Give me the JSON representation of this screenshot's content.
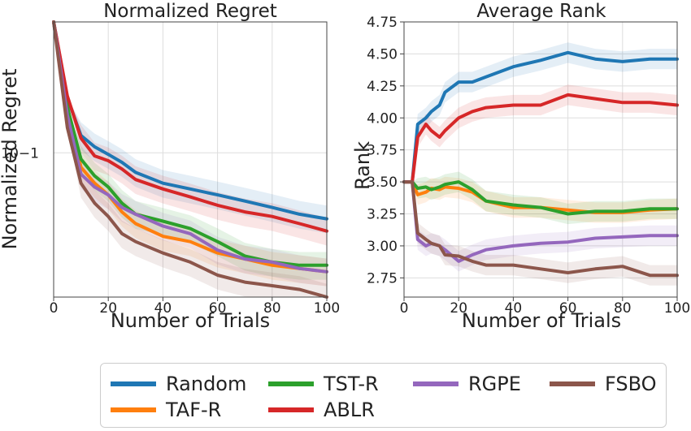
{
  "charts": [
    {
      "type": "line",
      "title": "Normalized Regret",
      "xlabel": "Number of Trials",
      "ylabel": "Normalized Regret",
      "yscale": "log",
      "xlim": [
        0,
        100
      ],
      "ylim": [
        0.039,
        0.235
      ],
      "xticks": [
        "0",
        "20",
        "40",
        "60",
        "80",
        "100"
      ],
      "ytick_label": "10−1",
      "grid": true
    },
    {
      "type": "line",
      "title": "Average Rank",
      "xlabel": "Number of Trials",
      "ylabel": "Rank",
      "xlim": [
        0,
        100
      ],
      "ylim": [
        2.6,
        4.75
      ],
      "yticks": [
        "2.75",
        "3.00",
        "3.25",
        "3.50",
        "3.75",
        "4.00",
        "4.25",
        "4.50",
        "4.75"
      ],
      "xticks": [
        "0",
        "20",
        "40",
        "60",
        "80",
        "100"
      ],
      "grid": true
    }
  ],
  "legend": [
    "Random",
    "TST-R",
    "RGPE",
    "FSBO",
    "TAF-R",
    "ABLR"
  ],
  "chart_data": [
    {
      "type": "line",
      "title": "Normalized Regret",
      "yscale": "log",
      "x_grid": [
        0,
        5,
        10,
        15,
        20,
        25,
        30,
        40,
        50,
        60,
        70,
        80,
        90,
        100
      ],
      "series": [
        {
          "name": "Random",
          "color": "#1f77b4",
          "values": [
            0.235,
            0.143,
            0.112,
            0.104,
            0.099,
            0.094,
            0.088,
            0.082,
            0.079,
            0.076,
            0.073,
            0.07,
            0.067,
            0.065
          ]
        },
        {
          "name": "TAF-R",
          "color": "#ff7f0e",
          "values": [
            0.235,
            0.135,
            0.091,
            0.082,
            0.076,
            0.068,
            0.063,
            0.058,
            0.056,
            0.052,
            0.05,
            0.048,
            0.047,
            0.046
          ]
        },
        {
          "name": "TST-R",
          "color": "#2ca02c",
          "values": [
            0.235,
            0.135,
            0.096,
            0.086,
            0.08,
            0.072,
            0.067,
            0.064,
            0.061,
            0.056,
            0.051,
            0.049,
            0.048,
            0.048
          ]
        },
        {
          "name": "ABLR",
          "color": "#d62728",
          "values": [
            0.235,
            0.145,
            0.11,
            0.098,
            0.095,
            0.09,
            0.084,
            0.079,
            0.075,
            0.071,
            0.068,
            0.066,
            0.063,
            0.06
          ]
        },
        {
          "name": "RGPE",
          "color": "#9467bd",
          "values": [
            0.235,
            0.128,
            0.087,
            0.08,
            0.076,
            0.07,
            0.067,
            0.062,
            0.059,
            0.053,
            0.05,
            0.049,
            0.047,
            0.046
          ]
        },
        {
          "name": "FSBO",
          "color": "#8c564b",
          "values": [
            0.235,
            0.118,
            0.082,
            0.072,
            0.066,
            0.059,
            0.056,
            0.052,
            0.049,
            0.045,
            0.043,
            0.042,
            0.041,
            0.039
          ]
        }
      ]
    },
    {
      "type": "line",
      "title": "Average Rank",
      "x_grid": [
        0,
        3,
        5,
        8,
        10,
        13,
        15,
        20,
        25,
        30,
        40,
        50,
        60,
        70,
        80,
        90,
        100
      ],
      "series": [
        {
          "name": "Random",
          "color": "#1f77b4",
          "values": [
            3.5,
            3.5,
            3.95,
            4.0,
            4.05,
            4.1,
            4.2,
            4.28,
            4.28,
            4.32,
            4.4,
            4.45,
            4.51,
            4.46,
            4.44,
            4.46,
            4.46
          ]
        },
        {
          "name": "TAF-R",
          "color": "#ff7f0e",
          "values": [
            3.5,
            3.5,
            3.4,
            3.42,
            3.45,
            3.44,
            3.46,
            3.45,
            3.42,
            3.35,
            3.3,
            3.3,
            3.28,
            3.26,
            3.26,
            3.28,
            3.29
          ]
        },
        {
          "name": "TST-R",
          "color": "#2ca02c",
          "values": [
            3.5,
            3.5,
            3.45,
            3.46,
            3.44,
            3.46,
            3.48,
            3.5,
            3.44,
            3.35,
            3.32,
            3.3,
            3.25,
            3.27,
            3.27,
            3.29,
            3.29
          ]
        },
        {
          "name": "ABLR",
          "color": "#d62728",
          "values": [
            3.5,
            3.5,
            3.85,
            3.95,
            3.9,
            3.85,
            3.9,
            4.0,
            4.05,
            4.08,
            4.1,
            4.1,
            4.18,
            4.15,
            4.12,
            4.12,
            4.1
          ]
        },
        {
          "name": "RGPE",
          "color": "#9467bd",
          "values": [
            3.5,
            3.5,
            3.05,
            3.0,
            3.02,
            3.0,
            2.97,
            2.88,
            2.93,
            2.97,
            3.0,
            3.02,
            3.03,
            3.06,
            3.07,
            3.08,
            3.08
          ]
        },
        {
          "name": "FSBO",
          "color": "#8c564b",
          "values": [
            3.5,
            3.5,
            3.1,
            3.05,
            3.02,
            3.0,
            2.93,
            2.92,
            2.88,
            2.85,
            2.85,
            2.82,
            2.79,
            2.82,
            2.84,
            2.77,
            2.77
          ]
        }
      ]
    }
  ]
}
